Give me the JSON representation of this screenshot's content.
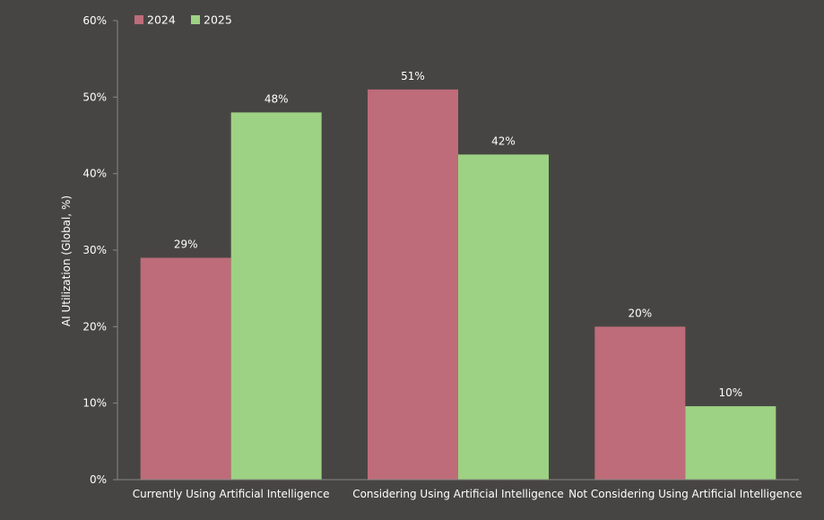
{
  "chart_data": {
    "type": "bar",
    "title": "",
    "xlabel": "",
    "ylabel": "AI Utilization (Global, %)",
    "categories": [
      "Currently Using Artificial Intelligence",
      "Considering Using Artificial Intelligence",
      "Not Considering Using Artificial Intelligence"
    ],
    "series": [
      {
        "name": "2024",
        "color": "#be6c79",
        "values": [
          29,
          51,
          20
        ],
        "labels": [
          "29%",
          "51%",
          "20%"
        ]
      },
      {
        "name": "2025",
        "color": "#9dd183",
        "values": [
          48,
          42.5,
          9.6
        ],
        "labels": [
          "48%",
          "42%",
          "10%"
        ]
      }
    ],
    "ylim": [
      0,
      60
    ],
    "yticks": [
      0,
      10,
      20,
      30,
      40,
      50,
      60
    ],
    "ytick_labels": [
      "0%",
      "10%",
      "20%",
      "30%",
      "40%",
      "50%",
      "60%"
    ],
    "grid": false,
    "legend": {
      "position": "top-left",
      "entries": [
        "2024",
        "2025"
      ]
    },
    "colors": {
      "background": "#474543",
      "axis": "#8a8886",
      "text": "#ffffff"
    }
  }
}
